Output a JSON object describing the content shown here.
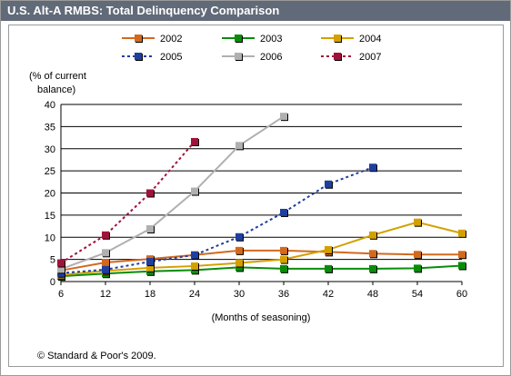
{
  "header": {
    "title": "U.S. Alt-A RMBS: Total Delinquency Comparison"
  },
  "footer": {
    "copyright": "© Standard & Poor's 2009."
  },
  "chart_data": {
    "type": "line",
    "title": "U.S. Alt-A RMBS: Total Delinquency Comparison",
    "ylabel_lines": [
      "(% of current",
      "balance)"
    ],
    "xlabel": "(Months of seasoning)",
    "x_ticks": [
      6,
      12,
      18,
      24,
      30,
      36,
      42,
      48,
      54,
      60
    ],
    "y_ticks": [
      0,
      5,
      10,
      15,
      20,
      25,
      30,
      35,
      40
    ],
    "xlim": [
      6,
      60
    ],
    "ylim": [
      0,
      40
    ],
    "grid": "horizontal",
    "legend_position": "top",
    "series": [
      {
        "name": "2002",
        "color": "#d2691e",
        "dash": false,
        "points": [
          [
            6,
            2.5
          ],
          [
            12,
            4.3
          ],
          [
            18,
            5.1
          ],
          [
            24,
            6.0
          ],
          [
            30,
            7.0
          ],
          [
            36,
            7.0
          ],
          [
            42,
            6.7
          ],
          [
            48,
            6.3
          ],
          [
            54,
            6.1
          ],
          [
            60,
            6.1
          ]
        ]
      },
      {
        "name": "2003",
        "color": "#0a8c0a",
        "dash": false,
        "points": [
          [
            6,
            1.2
          ],
          [
            12,
            1.8
          ],
          [
            18,
            2.3
          ],
          [
            24,
            2.6
          ],
          [
            30,
            3.2
          ],
          [
            36,
            2.9
          ],
          [
            42,
            2.9
          ],
          [
            48,
            2.9
          ],
          [
            54,
            3.0
          ],
          [
            60,
            3.6
          ]
        ]
      },
      {
        "name": "2004",
        "color": "#d4a000",
        "dash": false,
        "points": [
          [
            6,
            1.5
          ],
          [
            12,
            2.4
          ],
          [
            18,
            3.1
          ],
          [
            24,
            3.5
          ],
          [
            30,
            4.2
          ],
          [
            36,
            5.0
          ],
          [
            42,
            7.2
          ],
          [
            48,
            10.5
          ],
          [
            54,
            13.4
          ],
          [
            60,
            10.9
          ]
        ]
      },
      {
        "name": "2005",
        "color": "#1f3f9e",
        "dash": true,
        "points": [
          [
            6,
            1.9
          ],
          [
            12,
            2.7
          ],
          [
            18,
            4.5
          ],
          [
            24,
            6.0
          ],
          [
            30,
            10.1
          ],
          [
            36,
            15.6
          ],
          [
            42,
            22.0
          ],
          [
            48,
            25.8
          ]
        ]
      },
      {
        "name": "2006",
        "color": "#b0b0b0",
        "dash": false,
        "points": [
          [
            6,
            2.8
          ],
          [
            12,
            6.5
          ],
          [
            18,
            11.9
          ],
          [
            24,
            20.4
          ],
          [
            30,
            30.7
          ],
          [
            36,
            37.3
          ]
        ]
      },
      {
        "name": "2007",
        "color": "#a0123a",
        "dash": true,
        "points": [
          [
            6,
            4.2
          ],
          [
            12,
            10.5
          ],
          [
            18,
            20.0
          ],
          [
            24,
            31.6
          ]
        ]
      }
    ]
  }
}
